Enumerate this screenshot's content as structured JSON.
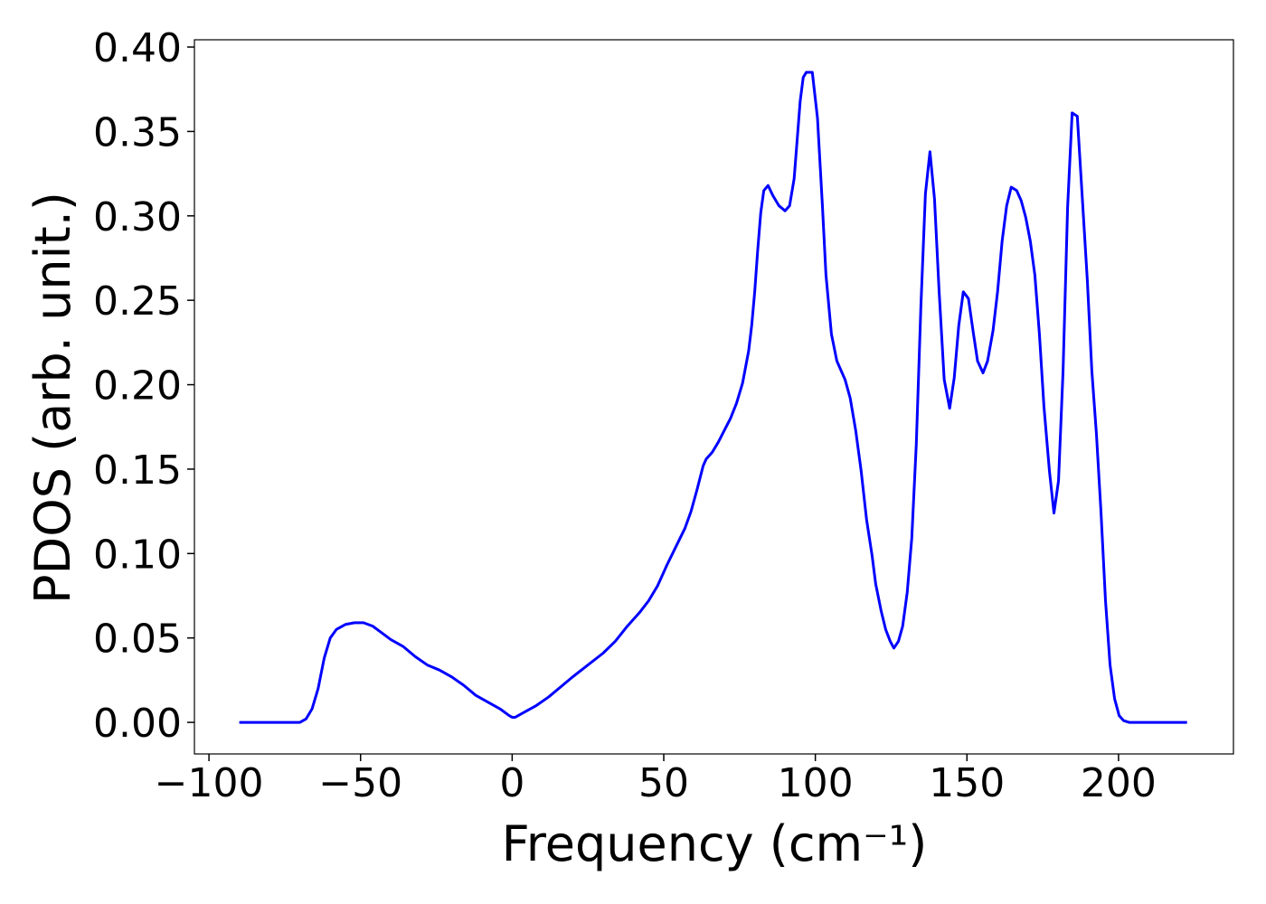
{
  "chart_data": {
    "type": "line",
    "xlabel": "Frequency (cm⁻¹)",
    "ylabel": "PDOS (arb. unit.)",
    "color": "#0000ff",
    "xlim": [
      -104.8,
      237.9
    ],
    "ylim": [
      -0.0187,
      0.4043
    ],
    "xticks": [
      {
        "value": -100,
        "label": "−100"
      },
      {
        "value": -50,
        "label": "−50"
      },
      0,
      50,
      100,
      150,
      200
    ],
    "yticks": [
      {
        "value": 0,
        "label": "0.00"
      },
      {
        "value": 0.05,
        "label": "0.05"
      },
      {
        "value": 0.1,
        "label": "0.10"
      },
      {
        "value": 0.15,
        "label": "0.15"
      },
      {
        "value": 0.2,
        "label": "0.20"
      },
      {
        "value": 0.25,
        "label": "0.25"
      },
      {
        "value": 0.3,
        "label": "0.30"
      },
      {
        "value": 0.35,
        "label": "0.35"
      },
      {
        "value": 0.4,
        "label": "0.40"
      }
    ],
    "x": [
      -90,
      -70,
      -68,
      -66,
      -64,
      -62,
      -60,
      -58,
      -55,
      -52,
      -49,
      -46,
      -43,
      -40,
      -36,
      -32,
      -28,
      -24,
      -20,
      -16,
      -12,
      -8,
      -4,
      -1,
      0,
      1,
      4,
      8,
      12,
      16,
      20,
      25,
      30,
      34,
      38,
      42,
      45,
      48,
      51,
      54,
      57,
      59,
      61,
      63,
      64,
      66,
      68,
      70,
      72,
      74,
      76,
      78,
      79,
      80,
      81,
      82,
      83,
      84.4,
      86,
      88,
      90,
      91.5,
      93,
      94,
      95,
      96,
      97,
      99,
      100.7,
      102.3,
      103.5,
      105.3,
      107.1,
      109.8,
      111.5,
      113.3,
      115.1,
      116.9,
      118.7,
      119.9,
      121.7,
      123.2,
      124.7,
      125.9,
      127.4,
      128.8,
      130.3,
      131.8,
      133.3,
      134.8,
      136.3,
      137.8,
      139.3,
      140.8,
      142.5,
      144.3,
      145.8,
      147.3,
      148.8,
      150.5,
      152.0,
      153.5,
      155.3,
      156.8,
      158.6,
      160.1,
      161.6,
      163.1,
      164.6,
      166.4,
      167.9,
      169.4,
      170.9,
      172.4,
      173.9,
      175.4,
      177.2,
      178.7,
      180.2,
      181.7,
      183.2,
      184.7,
      186.4,
      187.9,
      189.7,
      191.2,
      192.7,
      194.2,
      195.7,
      197.2,
      198.7,
      200.2,
      201.7,
      203.5,
      222.6
    ],
    "values": [
      0,
      0,
      0.002,
      0.008,
      0.02,
      0.038,
      0.05,
      0.055,
      0.058,
      0.059,
      0.059,
      0.057,
      0.053,
      0.049,
      0.045,
      0.039,
      0.034,
      0.031,
      0.027,
      0.022,
      0.016,
      0.012,
      0.008,
      0.004,
      0.003,
      0.003,
      0.006,
      0.01,
      0.015,
      0.021,
      0.027,
      0.034,
      0.041,
      0.048,
      0.057,
      0.065,
      0.072,
      0.081,
      0.093,
      0.104,
      0.115,
      0.125,
      0.138,
      0.152,
      0.156,
      0.16,
      0.166,
      0.173,
      0.18,
      0.189,
      0.201,
      0.22,
      0.235,
      0.255,
      0.28,
      0.302,
      0.315,
      0.318,
      0.312,
      0.306,
      0.303,
      0.306,
      0.322,
      0.345,
      0.368,
      0.382,
      0.385,
      0.385,
      0.358,
      0.307,
      0.265,
      0.23,
      0.214,
      0.203,
      0.192,
      0.173,
      0.149,
      0.12,
      0.099,
      0.082,
      0.066,
      0.055,
      0.048,
      0.044,
      0.048,
      0.057,
      0.077,
      0.109,
      0.165,
      0.246,
      0.313,
      0.338,
      0.31,
      0.256,
      0.203,
      0.186,
      0.204,
      0.235,
      0.255,
      0.251,
      0.232,
      0.214,
      0.207,
      0.214,
      0.232,
      0.255,
      0.285,
      0.306,
      0.317,
      0.315,
      0.309,
      0.299,
      0.285,
      0.265,
      0.23,
      0.187,
      0.149,
      0.124,
      0.143,
      0.208,
      0.305,
      0.361,
      0.359,
      0.315,
      0.262,
      0.208,
      0.171,
      0.125,
      0.072,
      0.034,
      0.014,
      0.004,
      0.001,
      0,
      0
    ]
  }
}
